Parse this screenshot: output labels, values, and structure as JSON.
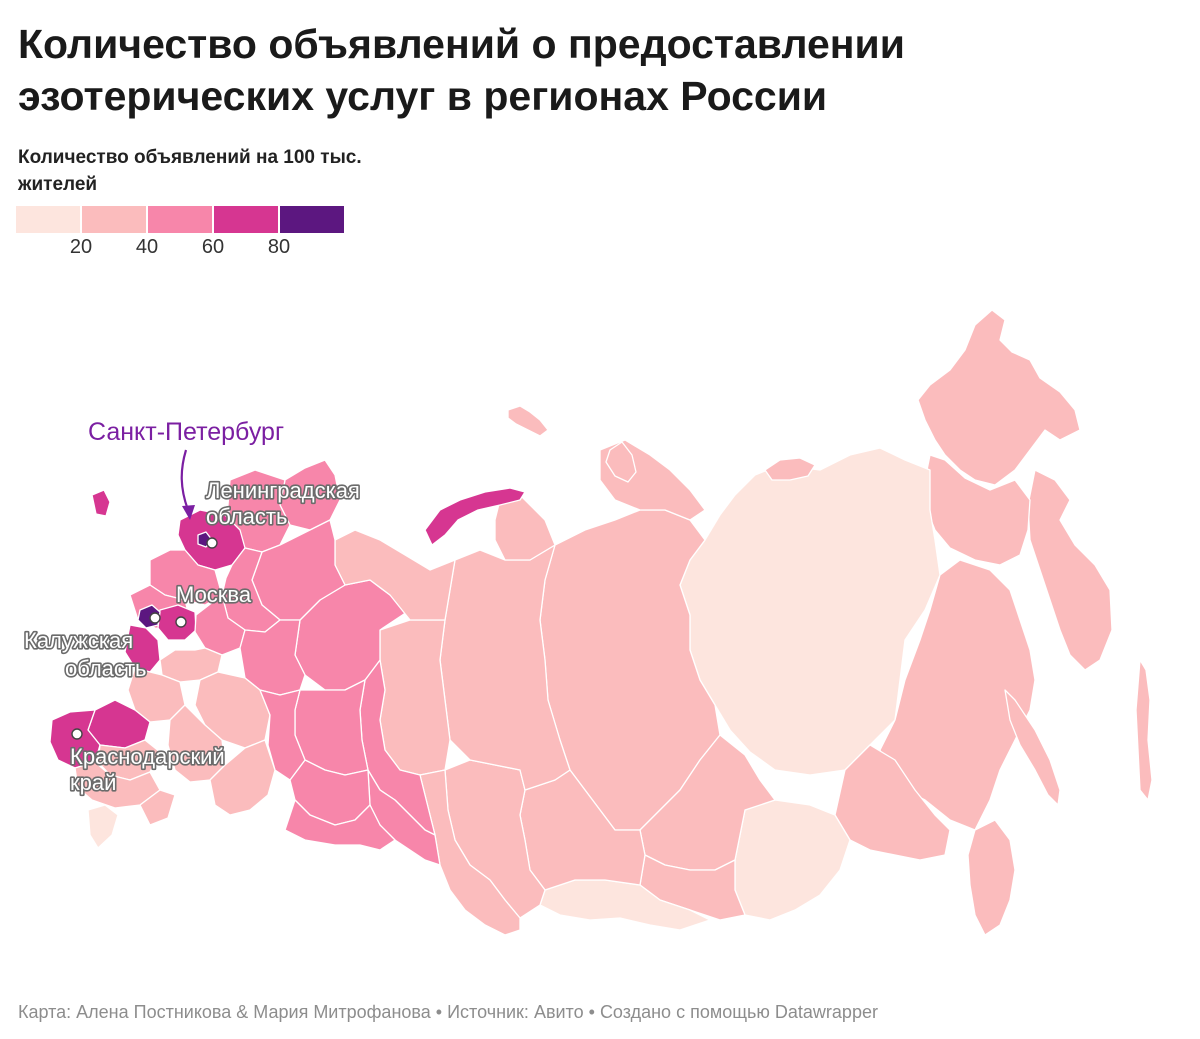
{
  "title": "Количество объявлений о предоставлении эзотерических услуг в регионах России",
  "legend": {
    "title": "Количество объявлений на 100 тыс. жителей",
    "colors": [
      "#fde5de",
      "#fbbcbd",
      "#f786aa",
      "#d63691",
      "#5c1780"
    ],
    "ticks": [
      "20",
      "40",
      "60",
      "80"
    ]
  },
  "labels": {
    "spb": "Санкт-Петербург",
    "leningrad_line1": "Ленинградская",
    "leningrad_line2": "область",
    "moscow": "Москва",
    "kaluga_line1": "Калужская",
    "kaluga_line2": "область",
    "krasnodar_line1": "Краснодарский",
    "krasnodar_line2": "край"
  },
  "footer": {
    "map_credit": "Карта: Алена Постникова & Мария Митрофанова",
    "source": "Источник: Авито",
    "created_with": "Создано с помощью Datawrapper",
    "separator": " • "
  }
}
